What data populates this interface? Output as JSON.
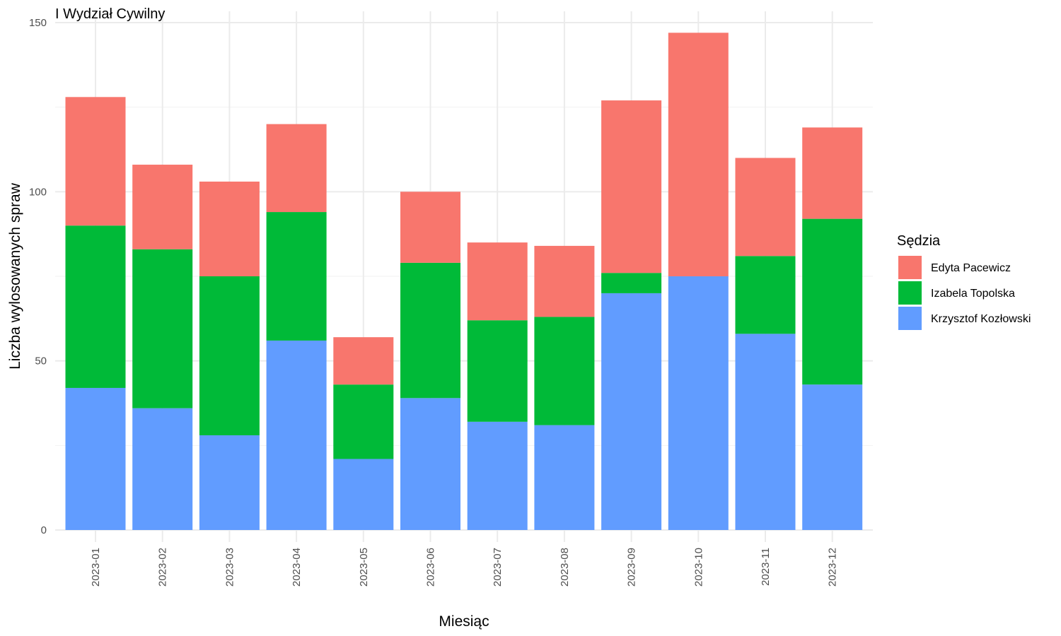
{
  "chart_data": {
    "type": "bar",
    "stacked": true,
    "title": "I Wydział Cywilny",
    "xlabel": "Miesiąc",
    "ylabel": "Liczba wylosowanych spraw",
    "ylim": [
      0,
      150
    ],
    "yticks": [
      0,
      50,
      100,
      150
    ],
    "grid": true,
    "legend_title": "Sędzia",
    "legend_position": "right",
    "categories": [
      "2023-01",
      "2023-02",
      "2023-03",
      "2023-04",
      "2023-05",
      "2023-06",
      "2023-07",
      "2023-08",
      "2023-09",
      "2023-10",
      "2023-11",
      "2023-12"
    ],
    "series": [
      {
        "name": "Krzysztof Kozłowski",
        "color": "#619CFF",
        "values": [
          42,
          36,
          28,
          56,
          21,
          39,
          32,
          31,
          70,
          75,
          58,
          43
        ]
      },
      {
        "name": "Izabela Topolska",
        "color": "#00BA38",
        "values": [
          48,
          47,
          47,
          38,
          22,
          40,
          30,
          32,
          6,
          0,
          23,
          49
        ]
      },
      {
        "name": "Edyta Pacewicz",
        "color": "#F8766D",
        "values": [
          38,
          25,
          28,
          26,
          14,
          21,
          23,
          21,
          51,
          72,
          29,
          27
        ]
      }
    ],
    "legend_order": [
      "Edyta Pacewicz",
      "Izabela Topolska",
      "Krzysztof Kozłowski"
    ]
  }
}
